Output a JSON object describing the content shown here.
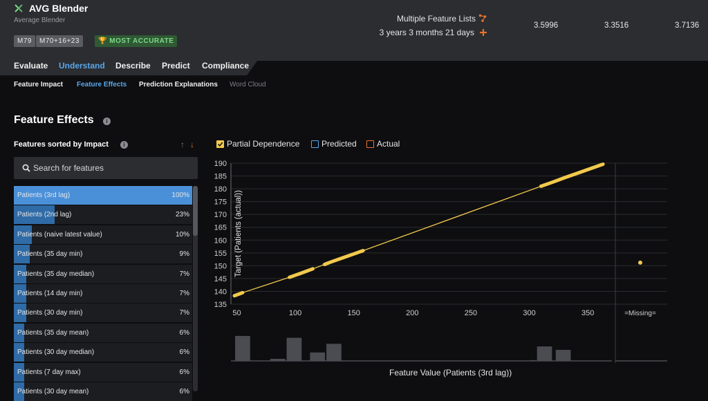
{
  "header": {
    "app_title": "AVG Blender",
    "app_subtitle": "Average Blender",
    "badges": {
      "model_id": "M79",
      "models": "M70+16+23",
      "accurate": "MOST ACCURATE"
    },
    "feature_lists": "Multiple Feature Lists",
    "duration": "3 years 3 months 21 days",
    "metrics": [
      "3.5996",
      "3.3516",
      "3.7136"
    ]
  },
  "tabs": [
    "Evaluate",
    "Understand",
    "Describe",
    "Predict",
    "Compliance"
  ],
  "active_tab": "Understand",
  "subtabs": [
    "Feature Impact",
    "Feature Effects",
    "Prediction Explanations",
    "Word Cloud"
  ],
  "section_title": "Feature Effects",
  "sort_title": "Features sorted by Impact",
  "search": {
    "placeholder": "Search for features",
    "value": ""
  },
  "features": [
    {
      "name": "Patients (3rd lag)",
      "impact": "100%",
      "value": 100
    },
    {
      "name": "Patients (2nd lag)",
      "impact": "23%",
      "value": 23
    },
    {
      "name": "Patients (naive latest value)",
      "impact": "10%",
      "value": 10
    },
    {
      "name": "Patients (35 day min)",
      "impact": "9%",
      "value": 9
    },
    {
      "name": "Patients (35 day median)",
      "impact": "7%",
      "value": 7
    },
    {
      "name": "Patients (14 day min)",
      "impact": "7%",
      "value": 7
    },
    {
      "name": "Patients (30 day min)",
      "impact": "7%",
      "value": 7
    },
    {
      "name": "Patients (35 day mean)",
      "impact": "6%",
      "value": 6
    },
    {
      "name": "Patients (30 day median)",
      "impact": "6%",
      "value": 6
    },
    {
      "name": "Patients (7 day max)",
      "impact": "6%",
      "value": 6
    },
    {
      "name": "Patients (30 day mean)",
      "impact": "6%",
      "value": 6
    }
  ],
  "legend": {
    "partial": "Partial Dependence",
    "predicted": "Predicted",
    "actual": "Actual"
  },
  "colors": {
    "accent": "#5aa7ea",
    "selected": "#4a90d9",
    "line": "#f2c94c",
    "orange": "#e8722a",
    "green": "#7fd78a"
  },
  "chart_data": {
    "type": "line",
    "title": "",
    "xlabel": "Feature Value (Patients (3rd lag))",
    "ylabel": "Target (Patients (actual))",
    "xlim": [
      45,
      370
    ],
    "ylim": [
      135,
      190
    ],
    "xticks": [
      50,
      100,
      150,
      200,
      250,
      300,
      350
    ],
    "yticks": [
      135,
      140,
      145,
      150,
      155,
      160,
      165,
      170,
      175,
      180,
      185,
      190
    ],
    "series": [
      {
        "x": [
          48,
          55,
          95,
          105,
          115,
          125,
          130,
          140,
          150,
          158,
          310,
          320,
          330,
          340,
          350,
          363
        ],
        "y": [
          138.3,
          139.5,
          145.5,
          147.1,
          148.8,
          150.5,
          151.4,
          153.0,
          154.6,
          155.9,
          181.0,
          182.6,
          184.3,
          185.9,
          187.5,
          189.6
        ]
      }
    ],
    "missing": {
      "label": "=Missing=",
      "value": 151.2
    },
    "histogram": {
      "bins": [
        [
          48,
          62,
          0.95
        ],
        [
          78,
          92,
          0.08
        ],
        [
          92,
          106,
          0.88
        ],
        [
          112,
          126,
          0.32
        ],
        [
          126,
          140,
          0.65
        ],
        [
          300,
          306,
          0.03
        ],
        [
          306,
          320,
          0.55
        ],
        [
          322,
          336,
          0.42
        ]
      ]
    },
    "grid": true
  }
}
